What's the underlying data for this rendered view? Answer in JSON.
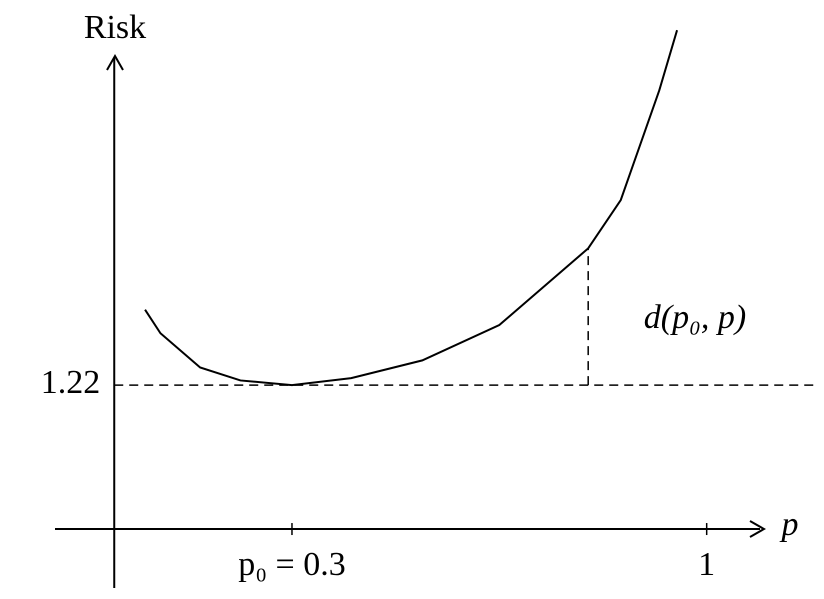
{
  "chart_data": {
    "type": "line",
    "y_label": "Risk",
    "x_label": "p",
    "annotation": "d(p₀, p)",
    "x": [
      0.052,
      0.078,
      0.145,
      0.213,
      0.3,
      0.4,
      0.52,
      0.65,
      0.8,
      0.855,
      0.92,
      0.95
    ],
    "series": [
      {
        "color": "#000000",
        "values": [
          1.86,
          1.66,
          1.37,
          1.26,
          1.22,
          1.28,
          1.43,
          1.73,
          2.38,
          2.79,
          3.72,
          4.23
        ]
      }
    ],
    "xlim": [
      -0.1,
      1.09
    ],
    "ylim": [
      -0.5,
      4.24
    ],
    "xticks": [
      {
        "value": 0.3,
        "label": "p₀ = 0.3"
      },
      1
    ],
    "yticks": [
      1.22
    ]
  }
}
